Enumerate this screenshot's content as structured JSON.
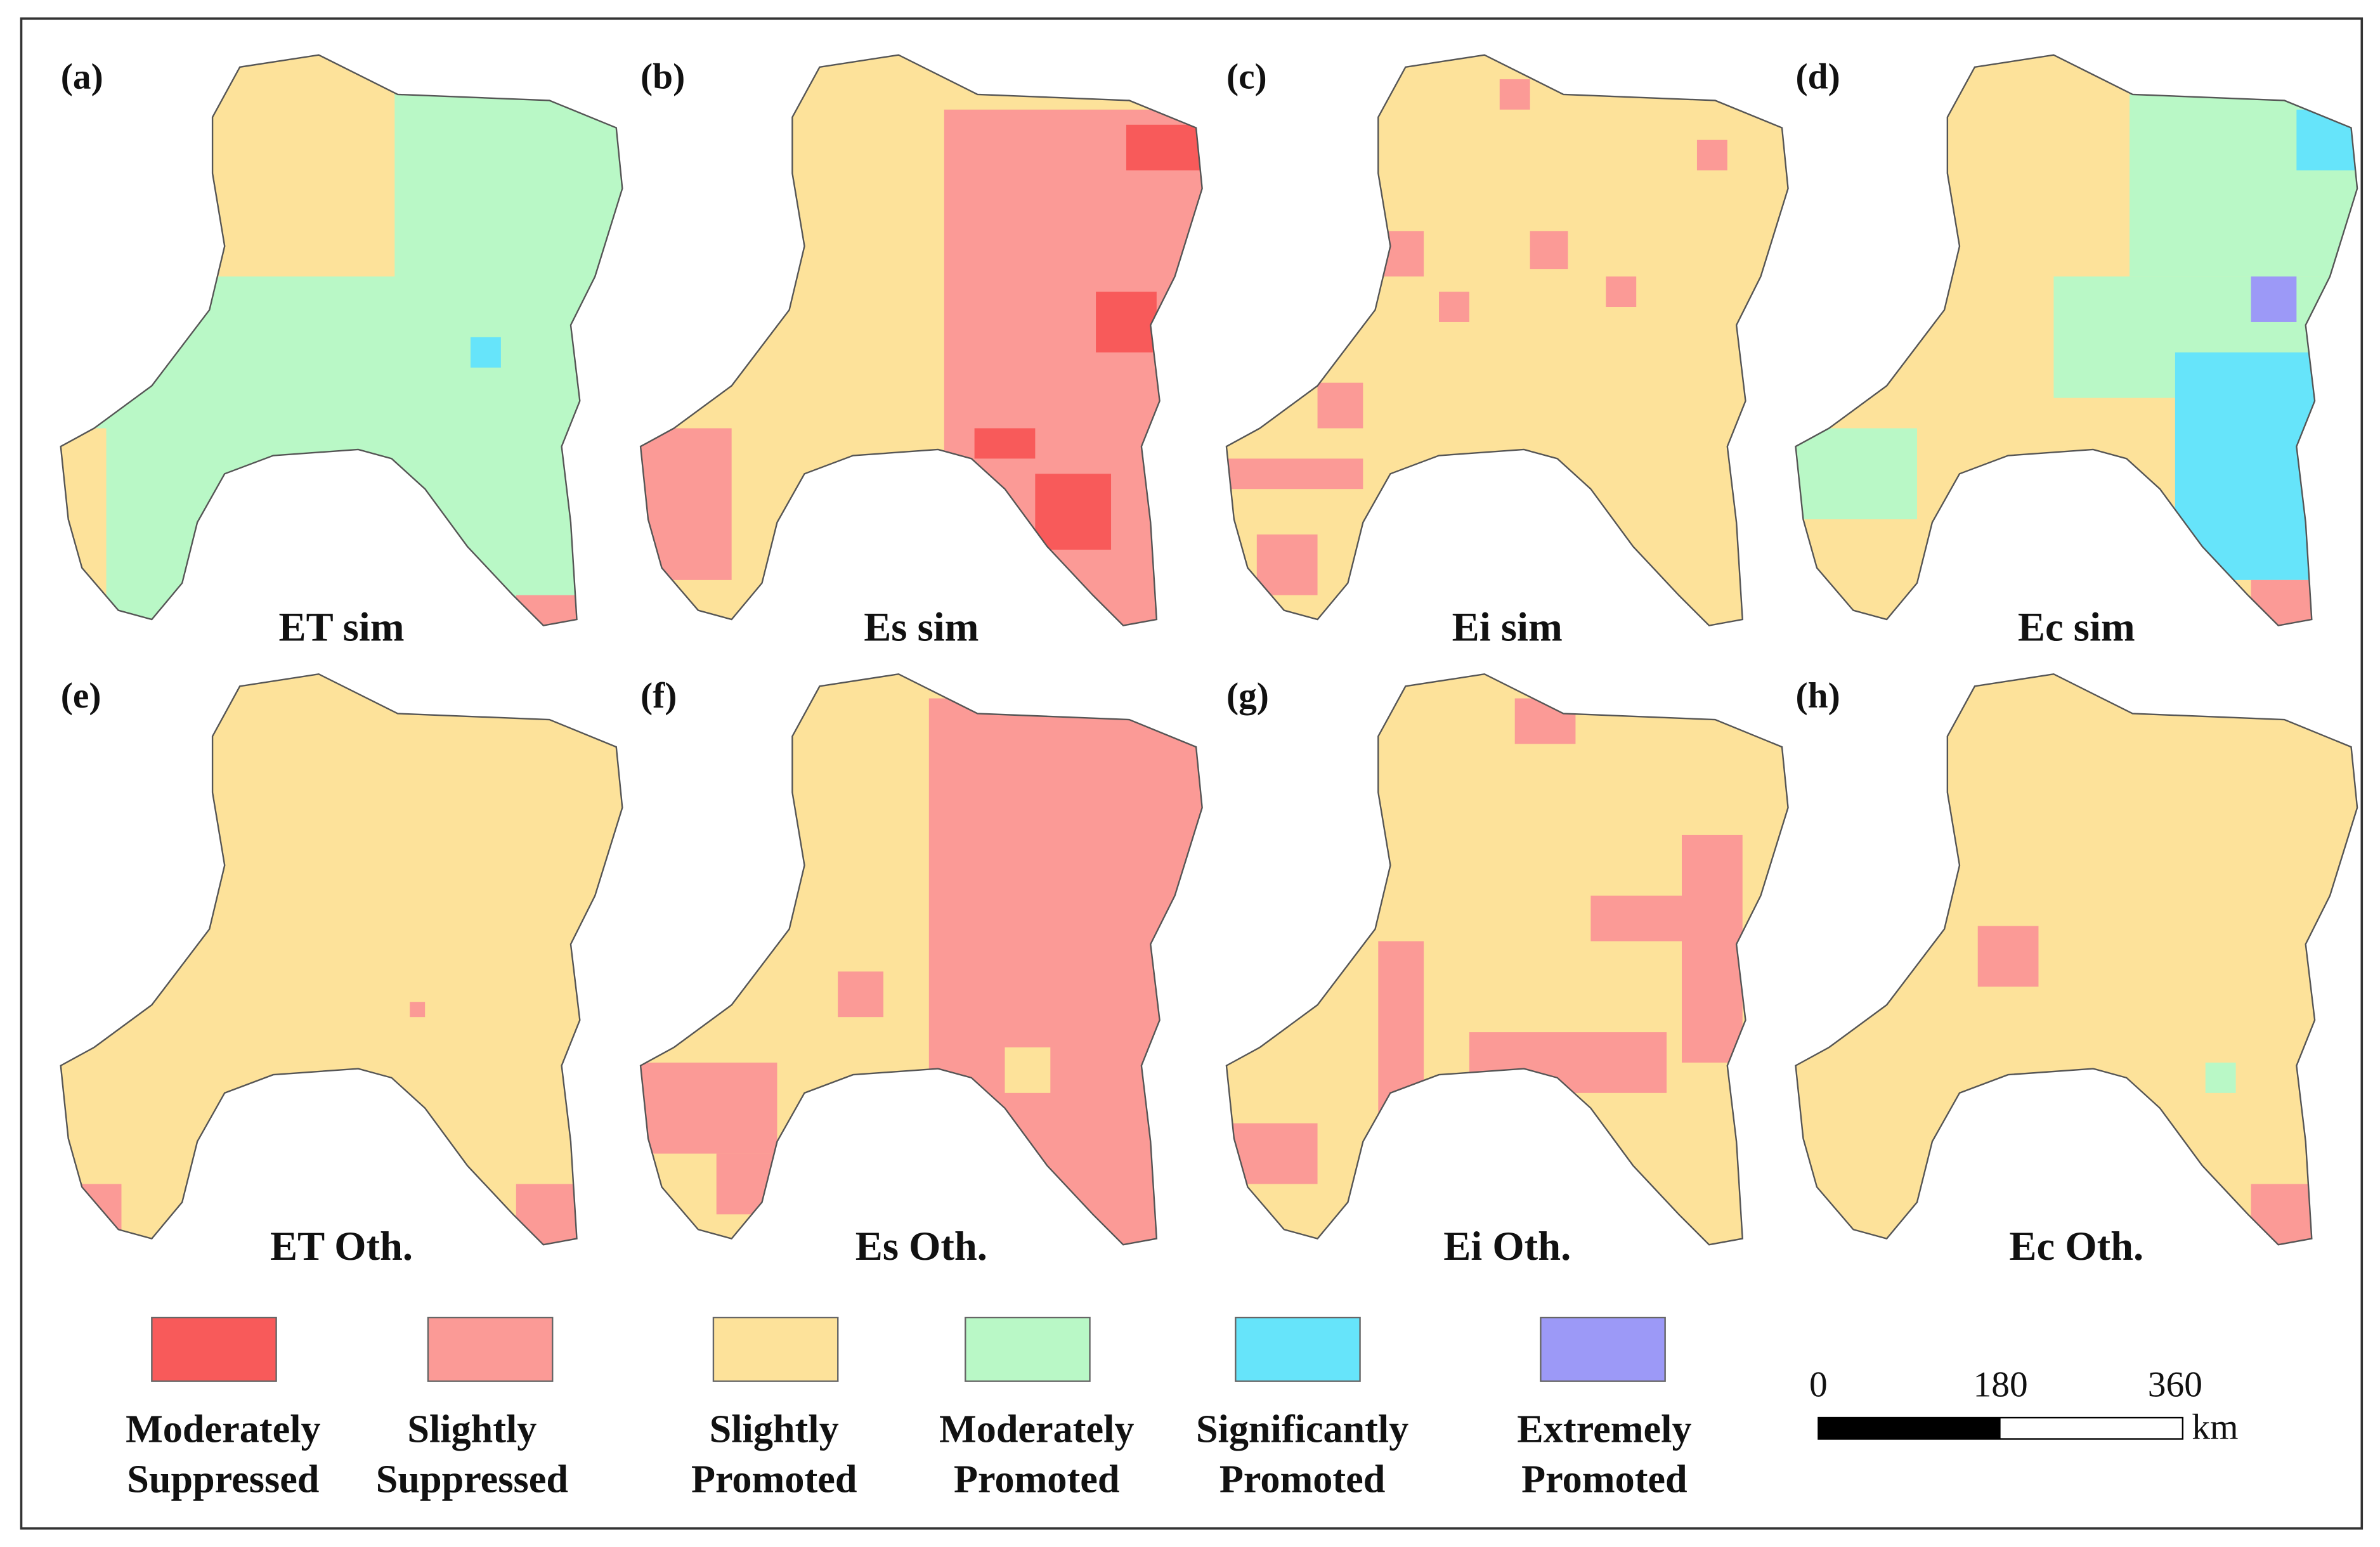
{
  "panels": [
    {
      "label": "(a)",
      "title": "ET sim"
    },
    {
      "label": "(b)",
      "title": "Es sim"
    },
    {
      "label": "(c)",
      "title": "Ei sim"
    },
    {
      "label": "(d)",
      "title": "Ec sim"
    },
    {
      "label": "(e)",
      "title": "ET Oth."
    },
    {
      "label": "(f)",
      "title": "Es Oth."
    },
    {
      "label": "(g)",
      "title": "Ei Oth."
    },
    {
      "label": "(h)",
      "title": "Ec Oth."
    }
  ],
  "legend": [
    {
      "label": [
        "Moderately",
        "Suppressed"
      ],
      "color": "#f85a5a"
    },
    {
      "label": [
        "Slightly",
        "Suppressed"
      ],
      "color": "#fb9a96"
    },
    {
      "label": [
        "Slightly",
        "Promoted"
      ],
      "color": "#fde29a"
    },
    {
      "label": [
        "Moderately",
        "Promoted"
      ],
      "color": "#b9f8c6"
    },
    {
      "label": [
        "Significantly",
        "Promoted"
      ],
      "color": "#66e4fa"
    },
    {
      "label": [
        "Extremely",
        "Promoted"
      ],
      "color": "#9c99f7"
    }
  ],
  "scale_bar": {
    "ticks": [
      "0",
      "180",
      "360"
    ],
    "unit": "km"
  }
}
